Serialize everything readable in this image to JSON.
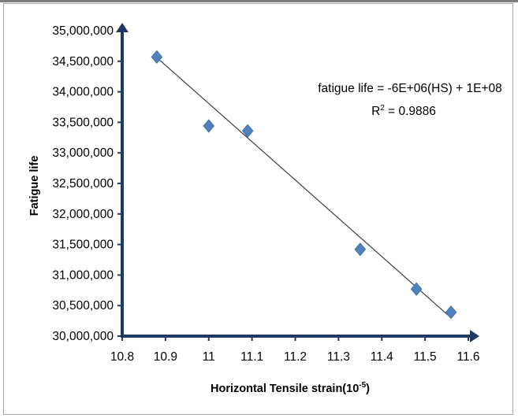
{
  "chart_data": {
    "type": "scatter",
    "xlabel": "Horizontal Tensile strain(10",
    "xlabel_superscript": "-5",
    "xlabel_suffix": ")",
    "ylabel": "Fatigue life",
    "xlim": [
      10.8,
      11.6
    ],
    "ylim": [
      30000000,
      35000000
    ],
    "x_ticks": [
      "10.8",
      "10.9",
      "11",
      "11.1",
      "11.2",
      "11.3",
      "11.4",
      "11.5",
      "11.6"
    ],
    "y_ticks": [
      "30,000,000",
      "30,500,000",
      "31,000,000",
      "31,500,000",
      "32,000,000",
      "32,500,000",
      "33,000,000",
      "33,500,000",
      "34,000,000",
      "34,500,000",
      "35,000,000"
    ],
    "grid": false,
    "series": [
      {
        "points": [
          {
            "x": 10.88,
            "y": 34570000
          },
          {
            "x": 11.0,
            "y": 33440000
          },
          {
            "x": 11.09,
            "y": 33360000
          },
          {
            "x": 11.35,
            "y": 31420000
          },
          {
            "x": 11.48,
            "y": 30770000
          },
          {
            "x": 11.56,
            "y": 30390000
          }
        ],
        "marker": "diamond",
        "color": "#4f81bd"
      }
    ],
    "trendline": {
      "type": "linear",
      "from": {
        "x": 10.88,
        "y": 34560000
      },
      "to": {
        "x": 11.56,
        "y": 30300000
      },
      "color": "#404040"
    },
    "annotations": {
      "equation": "fatigue life = -6E+06(HS) + 1E+08",
      "r2_prefix": "R",
      "r2_superscript": "2",
      "r2_value": " = 0.9886"
    },
    "axis_color": "#1f3864"
  }
}
